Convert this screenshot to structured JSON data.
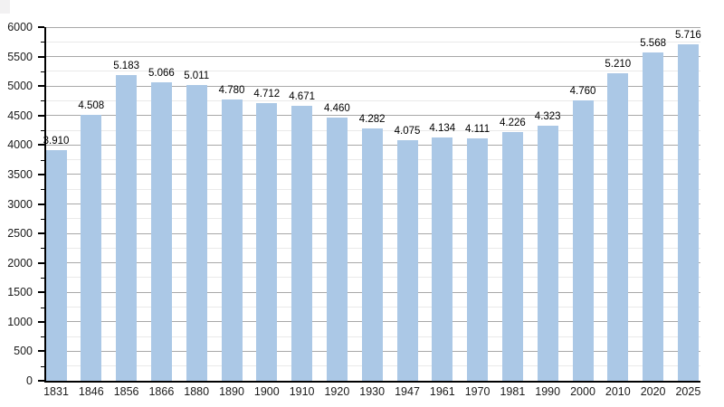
{
  "chart_data": {
    "type": "bar",
    "categories": [
      "1831",
      "1846",
      "1856",
      "1866",
      "1880",
      "1890",
      "1900",
      "1910",
      "1920",
      "1930",
      "1947",
      "1961",
      "1970",
      "1981",
      "1990",
      "2000",
      "2010",
      "2020",
      "2025"
    ],
    "values": [
      3910,
      4508,
      5183,
      5066,
      5011,
      4780,
      4712,
      4671,
      4460,
      4282,
      4075,
      4134,
      4111,
      4226,
      4323,
      4760,
      5210,
      5568,
      5716
    ],
    "value_labels": [
      "3.910",
      "4.508",
      "5.183",
      "5.066",
      "5.011",
      "4.780",
      "4.712",
      "4.671",
      "4.460",
      "4.282",
      "4.075",
      "4.134",
      "4.111",
      "4.226",
      "4.323",
      "4.760",
      "5.210",
      "5.568",
      "5.716"
    ],
    "xlabel": "",
    "ylabel": "",
    "ylim": [
      0,
      6000
    ],
    "y_major_step": 500,
    "y_minor_step": 250,
    "y_tick_labels": [
      "0",
      "500",
      "1000",
      "1500",
      "2000",
      "2500",
      "3000",
      "3500",
      "4000",
      "4500",
      "5000",
      "5500",
      "6000"
    ],
    "grid": "major-and-minor-horizontal",
    "legend_position": "none",
    "colors": {
      "bar_fill": "#abc8e6",
      "grid_major": "#a8a8a8",
      "grid_minor": "#e9e9e9",
      "axis": "#000000",
      "background": "#ffffff",
      "text": "#000000"
    }
  }
}
